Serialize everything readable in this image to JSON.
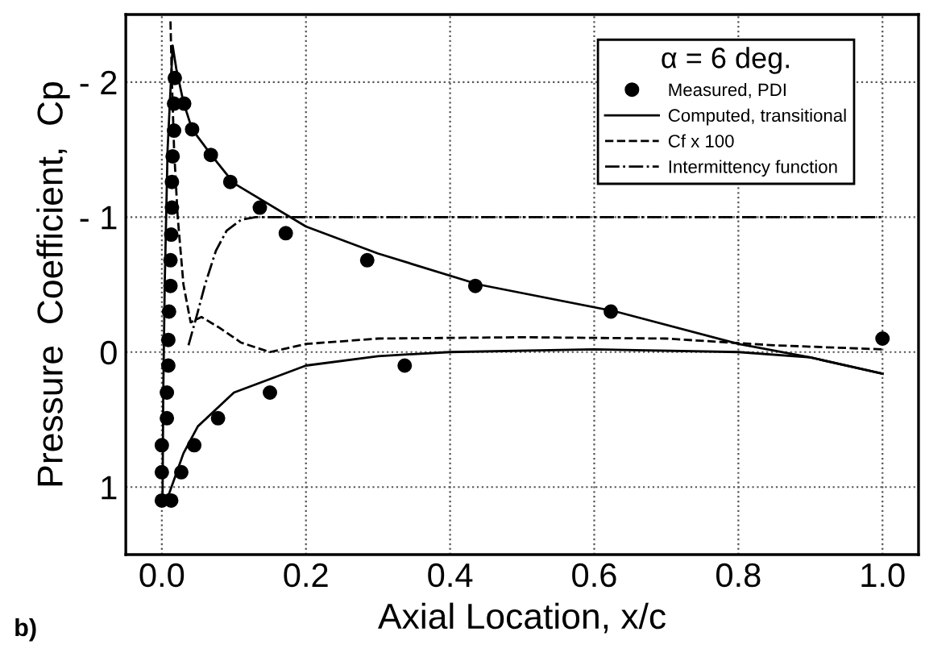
{
  "chart_data": {
    "type": "line",
    "xlabel": "Axial Location, x/c",
    "ylabel": "Pressure  Coefficient,  Cp",
    "legend_title": "α = 6 deg.",
    "annotations": [
      "b)"
    ],
    "xlim": [
      -0.05,
      1.05
    ],
    "xticks": [
      {
        "value": 0,
        "label": "0.0"
      },
      0.2,
      0.4,
      0.6,
      0.8,
      {
        "value": 1,
        "label": "1.0"
      }
    ],
    "ylim": [
      1.5,
      -2.5
    ],
    "yticks": [
      {
        "value": -2,
        "label": "- 2"
      },
      {
        "value": -1,
        "label": "- 1"
      },
      0,
      1
    ],
    "grid": true,
    "legend": "top right",
    "series": [
      {
        "name": "Measured, PDI",
        "type": "scatter",
        "marker": "circle",
        "color": "#000000",
        "x": [
          0.018,
          0.017,
          0.031,
          0.017,
          0.042,
          0.015,
          0.068,
          0.014,
          0.095,
          0.014,
          0.136,
          0.013,
          0.172,
          0.012,
          0.285,
          0.012,
          0.435,
          0.01,
          0.623,
          0.009,
          1.0,
          0.009,
          0.337,
          0.007,
          0.15,
          0.007,
          0.078,
          0.0,
          0.045,
          0.0,
          0.027,
          0.0,
          0.013
        ],
        "values": [
          -2.03,
          -1.84,
          -1.84,
          -1.64,
          -1.65,
          -1.45,
          -1.46,
          -1.26,
          -1.26,
          -1.07,
          -1.07,
          -0.87,
          -0.88,
          -0.68,
          -0.68,
          -0.49,
          -0.49,
          -0.3,
          -0.3,
          -0.09,
          -0.1,
          0.1,
          0.1,
          0.3,
          0.3,
          0.49,
          0.49,
          0.69,
          0.69,
          0.89,
          0.89,
          1.1,
          1.1
        ]
      },
      {
        "name": "Computed, transitional",
        "line_style": "solid",
        "marker": "none",
        "color": "#000000",
        "x": [
          0.001,
          0.002,
          0.004,
          0.008,
          0.015,
          0.02,
          0.03,
          0.042,
          0.07,
          0.1,
          0.2,
          0.3,
          0.44,
          0.63,
          0.8,
          0.9,
          1.0
        ],
        "values": [
          1.07,
          0.3,
          -0.5,
          -1.5,
          -2.27,
          -2.1,
          -1.85,
          -1.65,
          -1.45,
          -1.25,
          -0.93,
          -0.73,
          -0.5,
          -0.3,
          -0.06,
          0.04,
          0.16
        ]
      },
      {
        "line_style": "solid",
        "marker": "none",
        "color": "#000000",
        "x": [
          0.001,
          0.003,
          0.01,
          0.02,
          0.03,
          0.05,
          0.1,
          0.2,
          0.3,
          0.4,
          0.6,
          0.8,
          0.9,
          1.0
        ],
        "values": [
          1.07,
          1.07,
          1.05,
          0.9,
          0.75,
          0.55,
          0.3,
          0.1,
          0.03,
          0.0,
          -0.02,
          0.0,
          0.04,
          0.16
        ]
      },
      {
        "name": "Cf x 100",
        "line_style": "dashed",
        "marker": "none",
        "color": "#000000",
        "x": [
          0.012,
          0.014,
          0.017,
          0.022,
          0.03,
          0.04,
          0.055,
          0.08,
          0.11,
          0.15,
          0.2,
          0.3,
          0.5,
          0.7,
          0.85,
          1.0
        ],
        "values": [
          -2.45,
          -2.0,
          -1.5,
          -1.0,
          -0.5,
          -0.22,
          -0.26,
          -0.18,
          -0.07,
          0.0,
          -0.06,
          -0.1,
          -0.11,
          -0.1,
          -0.05,
          -0.02
        ]
      },
      {
        "name": "Intermittency function",
        "line_style": "dashdot",
        "marker": "none",
        "color": "#000000",
        "x": [
          0.037,
          0.05,
          0.06,
          0.075,
          0.09,
          0.11,
          0.13,
          0.2,
          0.4,
          0.6,
          0.8,
          1.0
        ],
        "values": [
          -0.05,
          -0.3,
          -0.5,
          -0.75,
          -0.9,
          -0.98,
          -1.0,
          -1.0,
          -1.0,
          -1.0,
          -1.0,
          -1.0
        ]
      }
    ]
  }
}
